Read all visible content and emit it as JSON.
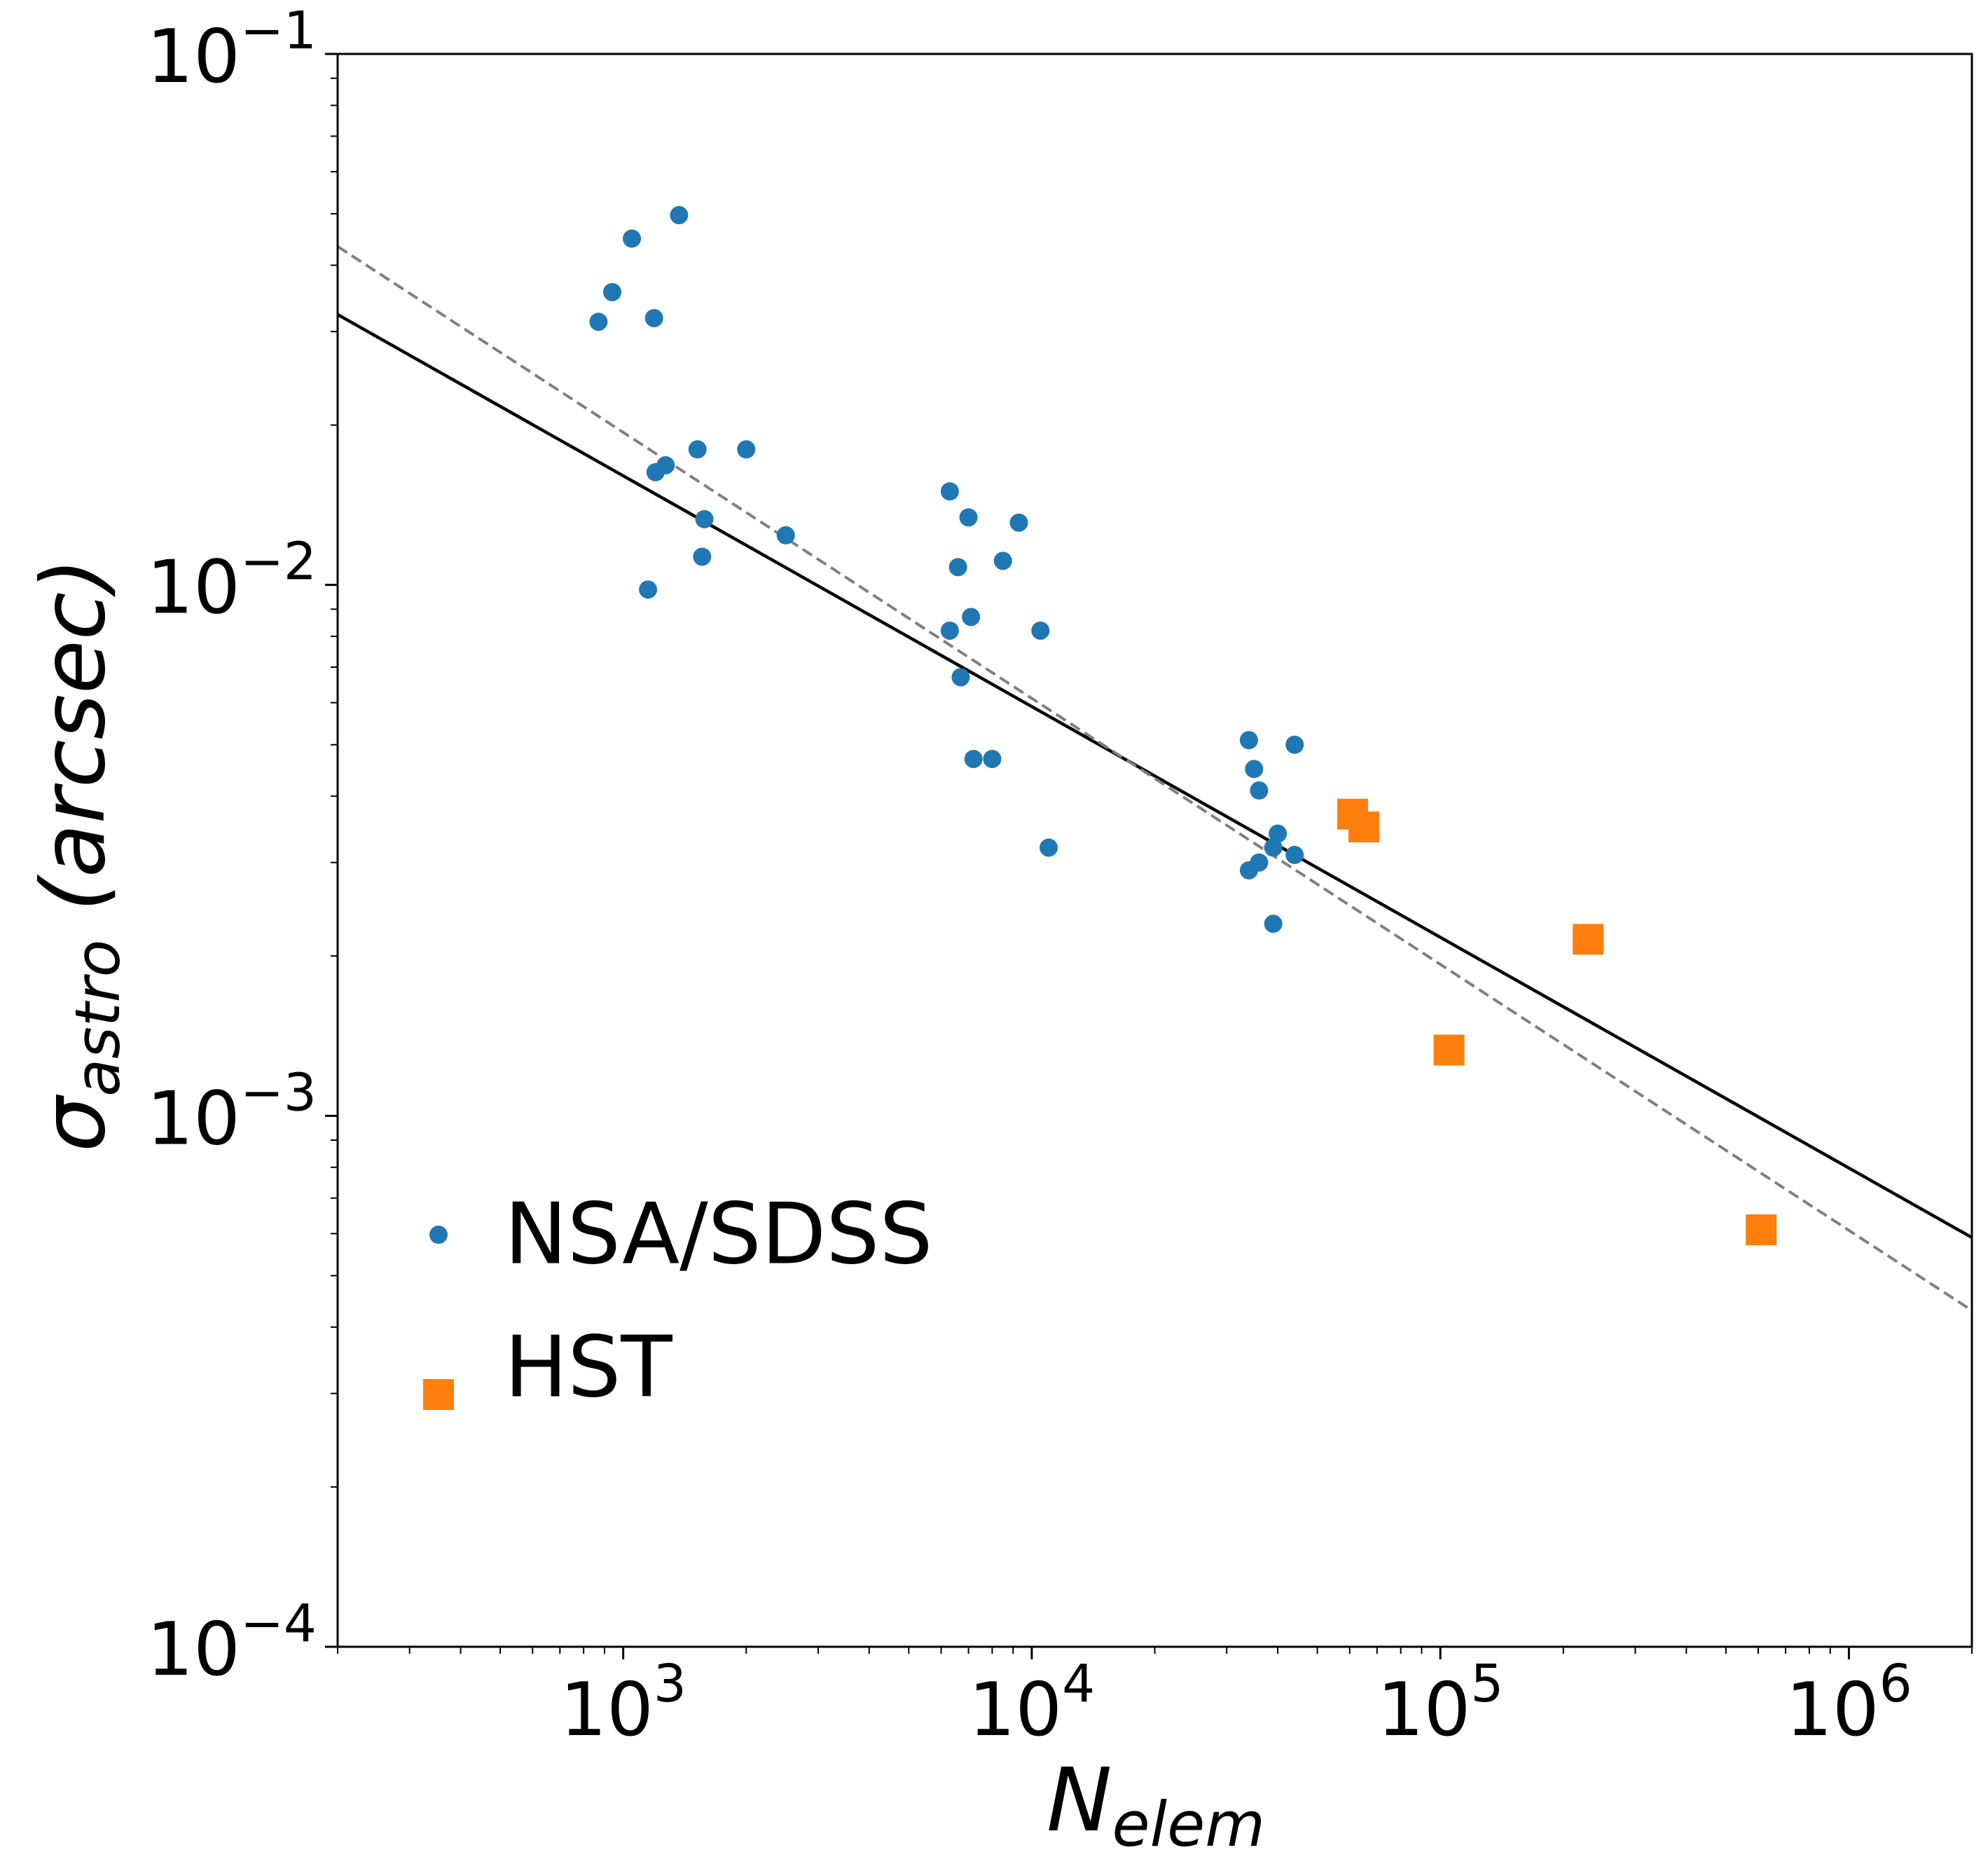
{
  "chart_data": {
    "type": "scatter",
    "title": "",
    "xlabel": {
      "main": "N",
      "sub": "elem"
    },
    "ylabel": {
      "main": "σ",
      "sub": "astro",
      "unit": " (arcsec)"
    },
    "xscale": "log",
    "yscale": "log",
    "xlim": [
      200,
      2000000
    ],
    "ylim": [
      0.0001,
      0.1
    ],
    "x_ticks": [
      {
        "value": 1000,
        "base": "10",
        "exp": "3"
      },
      {
        "value": 10000,
        "base": "10",
        "exp": "4"
      },
      {
        "value": 100000,
        "base": "10",
        "exp": "5"
      },
      {
        "value": 1000000,
        "base": "10",
        "exp": "6"
      }
    ],
    "y_ticks": [
      {
        "value": 0.1,
        "base": "10",
        "exp": "−1"
      },
      {
        "value": 0.01,
        "base": "10",
        "exp": "−2"
      },
      {
        "value": 0.001,
        "base": "10",
        "exp": "−3"
      },
      {
        "value": 0.0001,
        "base": "10",
        "exp": "−4"
      }
    ],
    "grid": false,
    "legend_position": "lower-left",
    "series": [
      {
        "name": "NSA/SDSS",
        "marker": "circle",
        "color": "#1f77b4",
        "points": [
          [
            870,
            0.0313
          ],
          [
            940,
            0.0356
          ],
          [
            1050,
            0.0449
          ],
          [
            1190,
            0.0318
          ],
          [
            1370,
            0.0497
          ],
          [
            1150,
            0.0098
          ],
          [
            1200,
            0.0163
          ],
          [
            1270,
            0.0168
          ],
          [
            1520,
            0.018
          ],
          [
            1580,
            0.0133
          ],
          [
            1560,
            0.0113
          ],
          [
            2000,
            0.018
          ],
          [
            2500,
            0.0124
          ],
          [
            6300,
            0.015
          ],
          [
            6600,
            0.0108
          ],
          [
            7000,
            0.0134
          ],
          [
            9300,
            0.0131
          ],
          [
            8500,
            0.0111
          ],
          [
            6300,
            0.0082
          ],
          [
            7100,
            0.0087
          ],
          [
            10500,
            0.0082
          ],
          [
            6700,
            0.0067
          ],
          [
            7200,
            0.0047
          ],
          [
            8000,
            0.0047
          ],
          [
            11000,
            0.0032
          ],
          [
            34000,
            0.0051
          ],
          [
            44000,
            0.005
          ],
          [
            35000,
            0.0045
          ],
          [
            36000,
            0.0041
          ],
          [
            40000,
            0.0034
          ],
          [
            39000,
            0.0032
          ],
          [
            44000,
            0.0031
          ],
          [
            36000,
            0.003
          ],
          [
            34000,
            0.0029
          ],
          [
            39000,
            0.0023
          ]
        ]
      },
      {
        "name": "HST",
        "marker": "square",
        "color": "#ff7f0e",
        "points": [
          [
            61000,
            0.0037
          ],
          [
            65000,
            0.0035
          ],
          [
            230000,
            0.00215
          ],
          [
            105000,
            0.00133
          ],
          [
            610000,
            0.00061
          ]
        ]
      }
    ],
    "lines": [
      {
        "name": "fit",
        "style": "solid",
        "color": "#000000",
        "x": [
          200,
          2000000
        ],
        "y": [
          0.0323,
          0.00059
        ]
      },
      {
        "name": "reference",
        "style": "dashed",
        "color": "#808080",
        "x": [
          200,
          2000000
        ],
        "y": [
          0.0434,
          0.00043
        ]
      }
    ]
  }
}
